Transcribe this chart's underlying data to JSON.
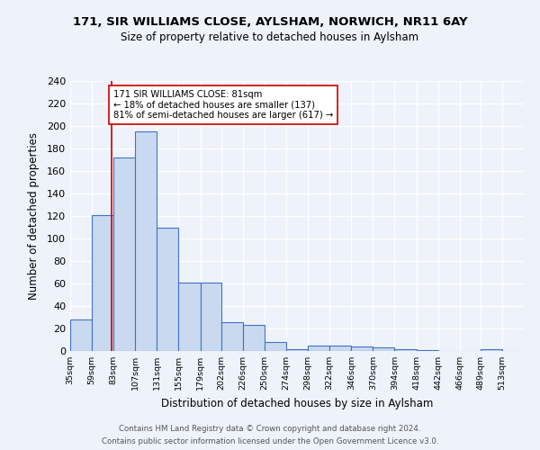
{
  "title1": "171, SIR WILLIAMS CLOSE, AYLSHAM, NORWICH, NR11 6AY",
  "title2": "Size of property relative to detached houses in Aylsham",
  "xlabel": "Distribution of detached houses by size in Aylsham",
  "ylabel": "Number of detached properties",
  "bin_labels": [
    "35sqm",
    "59sqm",
    "83sqm",
    "107sqm",
    "131sqm",
    "155sqm",
    "179sqm",
    "202sqm",
    "226sqm",
    "250sqm",
    "274sqm",
    "298sqm",
    "322sqm",
    "346sqm",
    "370sqm",
    "394sqm",
    "418sqm",
    "442sqm",
    "466sqm",
    "489sqm",
    "513sqm"
  ],
  "bin_edges": [
    35,
    59,
    83,
    107,
    131,
    155,
    179,
    202,
    226,
    250,
    274,
    298,
    322,
    346,
    370,
    394,
    418,
    442,
    466,
    489,
    513
  ],
  "counts": [
    28,
    121,
    172,
    195,
    110,
    61,
    61,
    26,
    23,
    8,
    2,
    5,
    5,
    4,
    3,
    2,
    1,
    0,
    0,
    2,
    0
  ],
  "bar_color": "#c9d9f0",
  "bar_edge_color": "#4472c4",
  "vline_x": 81,
  "vline_color": "#cc0000",
  "annotation_text": "171 SIR WILLIAMS CLOSE: 81sqm\n← 18% of detached houses are smaller (137)\n81% of semi-detached houses are larger (617) →",
  "annotation_box_color": "white",
  "annotation_box_edge": "#cc0000",
  "ylim": [
    0,
    240
  ],
  "yticks": [
    0,
    20,
    40,
    60,
    80,
    100,
    120,
    140,
    160,
    180,
    200,
    220,
    240
  ],
  "footer1": "Contains HM Land Registry data © Crown copyright and database right 2024.",
  "footer2": "Contains public sector information licensed under the Open Government Licence v3.0.",
  "background_color": "#eef2fb",
  "grid_color": "white"
}
